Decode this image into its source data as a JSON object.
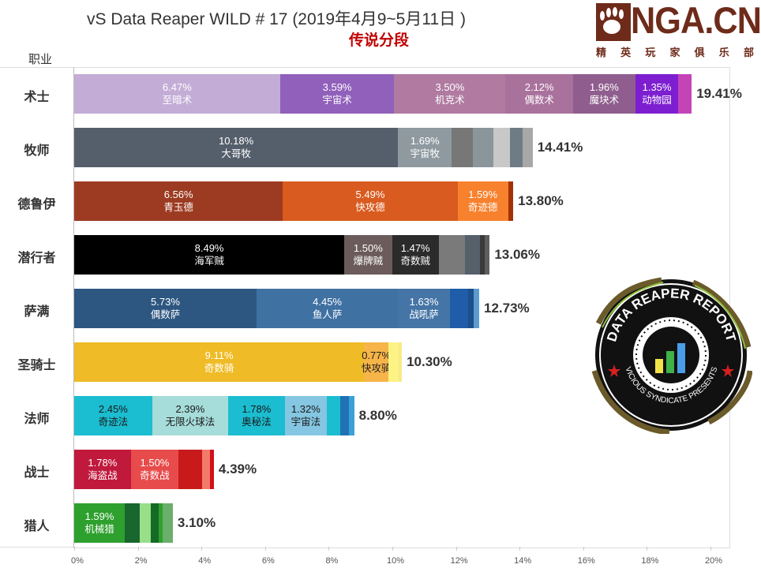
{
  "header": {
    "title": "vS Data Reaper WILD # 17 (2019年4月9~5月11日 )",
    "subtitle": "传说分段",
    "y_header": "职业"
  },
  "logo": {
    "nga_text": "NGA.CN",
    "nga_sub": [
      "精",
      "英",
      "玩",
      "家",
      "俱",
      "乐",
      "部"
    ],
    "badge_top": "DATA REAPER REPORT",
    "badge_bottom": "VICIOUS SYNDICATE PRESENTS"
  },
  "axis": {
    "ticks": [
      "0%",
      "2%",
      "4%",
      "6%",
      "8%",
      "10%",
      "12%",
      "14%",
      "16%",
      "18%",
      "20%"
    ]
  },
  "chart_data": {
    "type": "bar",
    "orientation": "horizontal-stacked",
    "title": "vS Data Reaper WILD # 17 (2019年4月9~5月11日 )",
    "subtitle": "传说分段",
    "xlabel": "",
    "ylabel": "职业",
    "xlim": [
      0,
      21
    ],
    "x_ticks": [
      "0%",
      "2%",
      "4%",
      "6%",
      "8%",
      "10%",
      "12%",
      "14%",
      "16%",
      "18%",
      "20%"
    ],
    "grid": false,
    "categories": [
      "术士",
      "牧师",
      "德鲁伊",
      "潜行者",
      "萨满",
      "圣骑士",
      "法师",
      "战士",
      "猎人"
    ],
    "rows": [
      {
        "class": "术士",
        "total": "19.41%",
        "segments": [
          {
            "label": "至暗术",
            "pct": "6.47%",
            "value": 6.47,
            "color": "#c3acd6"
          },
          {
            "label": "宇宙术",
            "pct": "3.59%",
            "value": 3.59,
            "color": "#9160bb"
          },
          {
            "label": "机克术",
            "pct": "3.50%",
            "value": 3.5,
            "color": "#b07aa1"
          },
          {
            "label": "偶数术",
            "pct": "2.12%",
            "value": 2.12,
            "color": "#a9729c"
          },
          {
            "label": "魔块术",
            "pct": "1.96%",
            "value": 1.96,
            "color": "#8f5e8e"
          },
          {
            "label": "动物园",
            "pct": "1.35%",
            "value": 1.35,
            "color": "#7d1fd0"
          },
          {
            "label": "",
            "pct": "",
            "value": 0.42,
            "color": "#c444b8"
          }
        ]
      },
      {
        "class": "牧师",
        "total": "14.41%",
        "segments": [
          {
            "label": "大哥牧",
            "pct": "10.18%",
            "value": 10.18,
            "color": "#555f6b"
          },
          {
            "label": "宇宙牧",
            "pct": "1.69%",
            "value": 1.69,
            "color": "#8e9aa0"
          },
          {
            "label": "",
            "pct": "",
            "value": 0.66,
            "color": "#777777"
          },
          {
            "label": "",
            "pct": "",
            "value": 0.64,
            "color": "#8b969b"
          },
          {
            "label": "",
            "pct": "",
            "value": 0.52,
            "color": "#c8c8c8"
          },
          {
            "label": "",
            "pct": "",
            "value": 0.41,
            "color": "#6e7c86"
          },
          {
            "label": "",
            "pct": "",
            "value": 0.31,
            "color": "#a8a8a8"
          }
        ]
      },
      {
        "class": "德鲁伊",
        "total": "13.80%",
        "segments": [
          {
            "label": "青玉德",
            "pct": "6.56%",
            "value": 6.56,
            "color": "#9c3b21"
          },
          {
            "label": "快攻德",
            "pct": "5.49%",
            "value": 5.49,
            "color": "#d95b1f"
          },
          {
            "label": "奇迹德",
            "pct": "1.59%",
            "value": 1.59,
            "color": "#f7812d"
          },
          {
            "label": "",
            "pct": "",
            "value": 0.16,
            "color": "#a33108"
          }
        ]
      },
      {
        "class": "潜行者",
        "total": "13.06%",
        "segments": [
          {
            "label": "海军贼",
            "pct": "8.49%",
            "value": 8.49,
            "color": "#000000"
          },
          {
            "label": "爆牌贼",
            "pct": "1.50%",
            "value": 1.5,
            "color": "#6b5b5b"
          },
          {
            "label": "奇数贼",
            "pct": "1.47%",
            "value": 1.47,
            "color": "#2b2b2b"
          },
          {
            "label": "",
            "pct": "",
            "value": 0.83,
            "color": "#7a7a7a"
          },
          {
            "label": "",
            "pct": "",
            "value": 0.47,
            "color": "#55606b"
          },
          {
            "label": "",
            "pct": "",
            "value": 0.15,
            "color": "#3a3a3a"
          },
          {
            "label": "",
            "pct": "",
            "value": 0.15,
            "color": "#5e5e5e"
          }
        ]
      },
      {
        "class": "萨满",
        "total": "12.73%",
        "segments": [
          {
            "label": "偶数萨",
            "pct": "5.73%",
            "value": 5.73,
            "color": "#2d5681"
          },
          {
            "label": "鱼人萨",
            "pct": "4.45%",
            "value": 4.45,
            "color": "#3f71a2"
          },
          {
            "label": "战吼萨",
            "pct": "1.63%",
            "value": 1.63,
            "color": "#4575a6"
          },
          {
            "label": "",
            "pct": "",
            "value": 0.58,
            "color": "#1f5da8"
          },
          {
            "label": "",
            "pct": "",
            "value": 0.17,
            "color": "#1d4f8a"
          },
          {
            "label": "",
            "pct": "",
            "value": 0.17,
            "color": "#5b9bd0"
          }
        ]
      },
      {
        "class": "圣骑士",
        "total": "10.30%",
        "segments": [
          {
            "label": "奇数骑",
            "pct": "9.11%",
            "value": 9.11,
            "color": "#efbb26"
          },
          {
            "label": "快攻骑",
            "pct": "0.77%",
            "value": 0.77,
            "color": "#f6b449"
          },
          {
            "label": "",
            "pct": "",
            "value": 0.33,
            "color": "#fdf384"
          },
          {
            "label": "",
            "pct": "",
            "value": 0.09,
            "color": "#f8e98a"
          }
        ]
      },
      {
        "class": "法师",
        "total": "8.80%",
        "segments": [
          {
            "label": "奇迹法",
            "pct": "2.45%",
            "value": 2.45,
            "color": "#1bbdd0"
          },
          {
            "label": "无限火球法",
            "pct": "2.39%",
            "value": 2.39,
            "color": "#a6dcd9"
          },
          {
            "label": "奥秘法",
            "pct": "1.78%",
            "value": 1.78,
            "color": "#1bbdd0"
          },
          {
            "label": "宇宙法",
            "pct": "1.32%",
            "value": 1.32,
            "color": "#85c6e2"
          },
          {
            "label": "",
            "pct": "",
            "value": 0.43,
            "color": "#1bbdd0"
          },
          {
            "label": "",
            "pct": "",
            "value": 0.27,
            "color": "#2171b5"
          },
          {
            "label": "",
            "pct": "",
            "value": 0.16,
            "color": "#3ba0d6"
          }
        ]
      },
      {
        "class": "战士",
        "total": "4.39%",
        "segments": [
          {
            "label": "海盗战",
            "pct": "1.78%",
            "value": 1.78,
            "color": "#c0193c"
          },
          {
            "label": "奇数战",
            "pct": "1.50%",
            "value": 1.5,
            "color": "#e84b4b"
          },
          {
            "label": "",
            "pct": "",
            "value": 0.75,
            "color": "#c81a1a"
          },
          {
            "label": "",
            "pct": "",
            "value": 0.25,
            "color": "#f27a6a"
          },
          {
            "label": "",
            "pct": "",
            "value": 0.11,
            "color": "#d0101a"
          }
        ]
      },
      {
        "class": "猎人",
        "total": "3.10%",
        "segments": [
          {
            "label": "机械猎",
            "pct": "1.59%",
            "value": 1.59,
            "color": "#2ea02e"
          },
          {
            "label": "",
            "pct": "",
            "value": 0.46,
            "color": "#19672e"
          },
          {
            "label": "",
            "pct": "",
            "value": 0.35,
            "color": "#98df8a"
          },
          {
            "label": "",
            "pct": "",
            "value": 0.25,
            "color": "#156a25"
          },
          {
            "label": "",
            "pct": "",
            "value": 0.13,
            "color": "#2ea02e"
          },
          {
            "label": "",
            "pct": "",
            "value": 0.32,
            "color": "#6aaf6a"
          }
        ]
      }
    ]
  }
}
